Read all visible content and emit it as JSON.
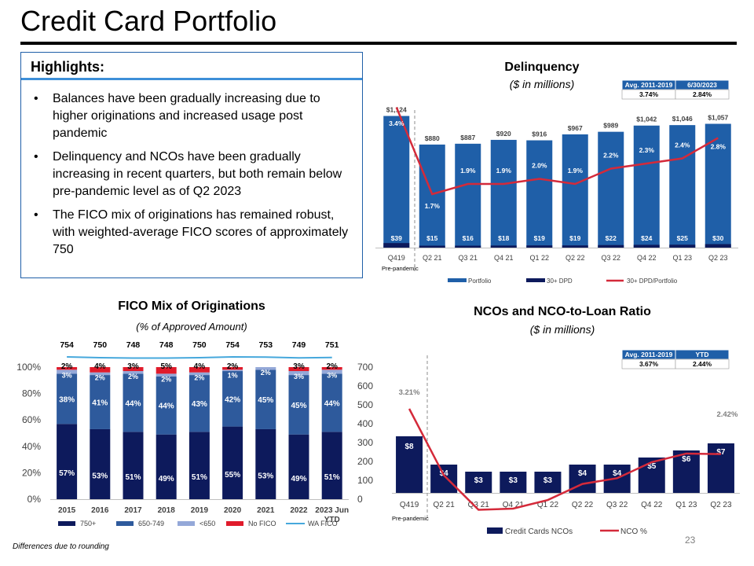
{
  "page": {
    "title": "Credit Card Portfolio",
    "footnote": "Differences due to rounding",
    "page_number": "23"
  },
  "highlights": {
    "title": "Highlights:",
    "bullets": [
      "Balances have been gradually increasing due to higher originations and increased usage post pandemic",
      "Delinquency and NCOs have been gradually increasing in recent quarters, but both remain below pre-pandemic level as of Q2 2023",
      "The FICO mix of originations has remained robust, with weighted-average FICO scores of approximately 750"
    ]
  },
  "colors": {
    "portfolio": "#1f5fa8",
    "dpd": "#0d1a5c",
    "ratio_line": "#d42a3a",
    "fico_750": "#0d1a5c",
    "fico_650": "#2e5a9c",
    "fico_lt650": "#94a8d8",
    "fico_nofico": "#e01b2b",
    "wa_fico": "#46a8dc",
    "nco_bar": "#0d1a5c",
    "table_header": "#1f5fa8"
  },
  "chart_data": [
    {
      "type": "bar",
      "title": "Delinquency",
      "subtitle": "($ in millions)",
      "categories": [
        "Q419",
        "Q2 21",
        "Q3 21",
        "Q4 21",
        "Q1 22",
        "Q2 22",
        "Q3 22",
        "Q4 22",
        "Q1 23",
        "Q2 23"
      ],
      "category_note": "Pre-pandemic",
      "series": [
        {
          "name": "Portfolio",
          "type": "bar",
          "values": [
            1124,
            880,
            887,
            920,
            916,
            967,
            989,
            1042,
            1046,
            1057
          ],
          "labels": [
            "$1,124",
            "$880",
            "$887",
            "$920",
            "$916",
            "$967",
            "$989",
            "$1,042",
            "$1,046",
            "$1,057"
          ]
        },
        {
          "name": "30+ DPD",
          "type": "bar",
          "values": [
            39,
            15,
            16,
            18,
            19,
            19,
            22,
            24,
            25,
            30
          ],
          "labels": [
            "$39",
            "$15",
            "$16",
            "$18",
            "$19",
            "$19",
            "$22",
            "$24",
            "$25",
            "$30"
          ]
        },
        {
          "name": "30+ DPD/Portfolio",
          "type": "line",
          "values": [
            3.4,
            1.7,
            1.9,
            1.9,
            2.0,
            1.9,
            2.2,
            2.3,
            2.4,
            2.8
          ],
          "labels": [
            "3.4%",
            "1.7%",
            "1.9%",
            "1.9%",
            "2.0%",
            "1.9%",
            "2.2%",
            "2.3%",
            "2.4%",
            "2.8%"
          ]
        }
      ],
      "table": {
        "headers": [
          "Avg. 2011-2019",
          "6/30/2023"
        ],
        "values": [
          "3.74%",
          "2.84%"
        ]
      }
    },
    {
      "type": "bar",
      "title": "FICO Mix of Originations",
      "subtitle": "(% of Approved Amount)",
      "categories": [
        "2015",
        "2016",
        "2017",
        "2018",
        "2019",
        "2020",
        "2021",
        "2022",
        "2023 Jun YTD"
      ],
      "ylim": [
        0,
        100
      ],
      "y_ticks": [
        "0%",
        "20%",
        "40%",
        "60%",
        "80%",
        "100%"
      ],
      "y2lim": [
        0,
        700
      ],
      "y2_ticks": [
        "0",
        "100",
        "200",
        "300",
        "400",
        "500",
        "600",
        "700"
      ],
      "series": [
        {
          "name": "750+",
          "values": [
            57,
            53,
            51,
            49,
            51,
            55,
            53,
            49,
            51
          ]
        },
        {
          "name": "650-749",
          "values": [
            38,
            41,
            44,
            44,
            43,
            42,
            45,
            45,
            44
          ]
        },
        {
          "name": "<650",
          "values": [
            3,
            2,
            2,
            2,
            2,
            1,
            2,
            3,
            3
          ]
        },
        {
          "name": "No FICO",
          "values": [
            2,
            4,
            3,
            5,
            4,
            2,
            0,
            3,
            2
          ]
        },
        {
          "name": "WA FICO",
          "type": "line",
          "values": [
            754,
            750,
            748,
            748,
            750,
            754,
            753,
            749,
            751
          ]
        }
      ],
      "top_labels": [
        "2%",
        "4%",
        "3%",
        "5%",
        "4%",
        "2%",
        "",
        "3%",
        "2%"
      ]
    },
    {
      "type": "bar",
      "title": "NCOs and NCO-to-Loan Ratio",
      "subtitle": "($ in millions)",
      "categories": [
        "Q419",
        "Q2 21",
        "Q3 21",
        "Q4 21",
        "Q1 22",
        "Q2 22",
        "Q3 22",
        "Q4 22",
        "Q1 23",
        "Q2 23"
      ],
      "category_note": "Pre-pandemic",
      "series": [
        {
          "name": "Credit Cards NCOs",
          "type": "bar",
          "values": [
            8,
            4,
            3,
            3,
            3,
            4,
            4,
            5,
            6,
            7
          ],
          "labels": [
            "$8",
            "$4",
            "$3",
            "$3",
            "$3",
            "$4",
            "$4",
            "$5",
            "$6",
            "$7"
          ]
        },
        {
          "name": "NCO %",
          "type": "line",
          "values": [
            3.21,
            2.05,
            1.45,
            1.47,
            1.62,
            1.9,
            2.0,
            2.28,
            2.43,
            2.42
          ],
          "labels": [
            "3.21%",
            "",
            "",
            "",
            "",
            "",
            "",
            "",
            "",
            "2.42%"
          ]
        }
      ],
      "table": {
        "headers": [
          "Avg. 2011-2019",
          "YTD"
        ],
        "values": [
          "3.67%",
          "2.44%"
        ]
      }
    }
  ]
}
